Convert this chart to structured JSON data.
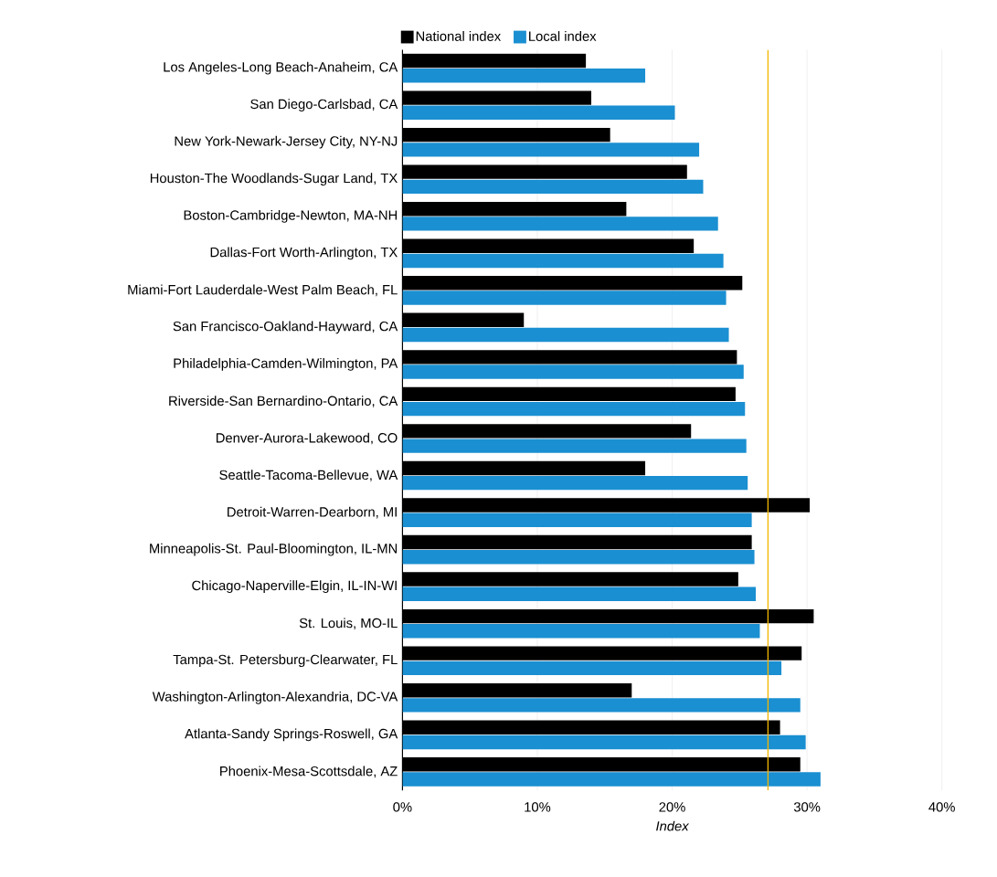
{
  "chart_data": {
    "type": "bar",
    "orientation": "horizontal",
    "xlabel": "Index",
    "categories": [
      "Los Angeles-Long Beach-Anaheim, CA",
      "San Diego-Carlsbad, CA",
      "New York-Newark-Jersey City, NY-NJ",
      "Houston-The Woodlands-Sugar Land, TX",
      "Boston-Cambridge-Newton, MA-NH",
      "Dallas-Fort Worth-Arlington, TX",
      "Miami-Fort Lauderdale-West Palm Beach, FL",
      "San Francisco-Oakland-Hayward, CA",
      "Philadelphia-Camden-Wilmington, PA",
      "Riverside-San Bernardino-Ontario, CA",
      "Denver-Aurora-Lakewood, CO",
      "Seattle-Tacoma-Bellevue, WA",
      "Detroit-Warren-Dearborn, MI",
      "Minneapolis-St. Paul-Bloomington, IL-MN",
      "Chicago-Naperville-Elgin, IL-IN-WI",
      "St. Louis, MO-IL",
      "Tampa-St. Petersburg-Clearwater, FL",
      "Washington-Arlington-Alexandria, DC-VA",
      "Atlanta-Sandy Springs-Roswell, GA",
      "Phoenix-Mesa-Scottsdale, AZ"
    ],
    "series": [
      {
        "name": "National index",
        "color": "#000000",
        "values": [
          13.6,
          14.0,
          15.4,
          21.1,
          16.6,
          21.6,
          25.2,
          9.0,
          24.8,
          24.7,
          21.4,
          18.0,
          30.2,
          25.9,
          24.9,
          30.5,
          29.6,
          17.0,
          28.0,
          29.5
        ]
      },
      {
        "name": "Local index",
        "color": "#1a8fd1",
        "values": [
          18.0,
          20.2,
          22.0,
          22.3,
          23.4,
          23.8,
          24.0,
          24.2,
          25.3,
          25.4,
          25.5,
          25.6,
          25.9,
          26.1,
          26.2,
          26.5,
          28.1,
          29.5,
          29.9,
          31.0
        ]
      }
    ],
    "xlim": [
      0,
      40
    ],
    "xticks": [
      {
        "value": 0,
        "label": "0%"
      },
      {
        "value": 10,
        "label": "10%"
      },
      {
        "value": 20,
        "label": "20%"
      },
      {
        "value": 30,
        "label": "30%"
      },
      {
        "value": 40,
        "label": "40%"
      }
    ],
    "ref_lines": [
      {
        "axis": "x",
        "value": 27.1,
        "color": "#f2b600"
      }
    ],
    "grid": "x",
    "legend": "top"
  }
}
